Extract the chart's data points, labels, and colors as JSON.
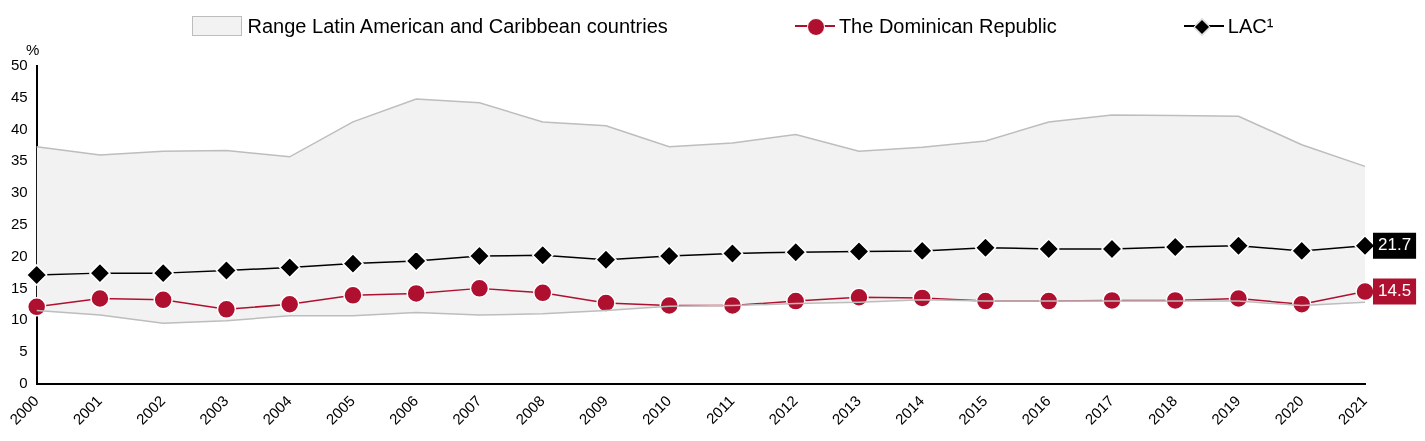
{
  "chart_data": {
    "type": "line",
    "ylabel": "%",
    "categories": [
      "2000",
      "2001",
      "2002",
      "2003",
      "2004",
      "2005",
      "2006",
      "2007",
      "2008",
      "2009",
      "2010",
      "2011",
      "2012",
      "2013",
      "2014",
      "2015",
      "2016",
      "2017",
      "2018",
      "2019",
      "2020",
      "2021"
    ],
    "ylim": [
      0,
      50
    ],
    "yticks": [
      0,
      5,
      10,
      15,
      20,
      25,
      30,
      35,
      40,
      45,
      50
    ],
    "grid": false,
    "legend": "top",
    "line_style": "solid",
    "series": [
      {
        "type": "line",
        "marker": "none",
        "color": "#bdbdbd",
        "values": [
          11.5,
          10.8,
          9.5,
          9.9,
          10.7,
          10.7,
          11.2,
          10.8,
          11.0,
          11.5,
          12.2,
          12.3,
          12.6,
          12.8,
          13.2,
          13.0,
          13.0,
          13.0,
          13.0,
          13.0,
          12.3,
          12.8
        ]
      },
      {
        "name": "Range Latin American and Caribbean countries",
        "type": "area",
        "color": "#f2f2f2",
        "values": [
          37.3,
          36.0,
          36.6,
          36.7,
          35.7,
          41.2,
          44.8,
          44.2,
          41.2,
          40.6,
          37.3,
          37.9,
          39.2,
          36.6,
          37.2,
          38.2,
          41.2,
          42.3,
          42.2,
          42.1,
          37.6,
          34.2
        ]
      },
      {
        "name": "The Dominican Republic",
        "type": "line",
        "marker": "circle",
        "color": "#b0102f",
        "values": [
          12.1,
          13.4,
          13.2,
          11.7,
          12.5,
          13.9,
          14.2,
          15.0,
          14.3,
          12.7,
          12.3,
          12.3,
          13.0,
          13.6,
          13.5,
          13.0,
          13.0,
          13.1,
          13.1,
          13.4,
          12.5,
          14.5
        ],
        "value_labels": [
          null,
          null,
          null,
          null,
          null,
          null,
          null,
          null,
          null,
          null,
          null,
          null,
          null,
          null,
          null,
          null,
          null,
          null,
          null,
          null,
          null,
          "14.5"
        ]
      },
      {
        "name": "LAC¹",
        "type": "line",
        "marker": "diamond",
        "color": "#000000",
        "values": [
          17.1,
          17.4,
          17.4,
          17.8,
          18.3,
          18.9,
          19.3,
          20.1,
          20.2,
          19.5,
          20.1,
          20.5,
          20.7,
          20.8,
          20.9,
          21.4,
          21.2,
          21.2,
          21.5,
          21.7,
          20.9,
          21.7
        ],
        "value_labels": [
          null,
          null,
          null,
          null,
          null,
          null,
          null,
          null,
          null,
          null,
          null,
          null,
          null,
          null,
          null,
          null,
          null,
          null,
          null,
          null,
          null,
          "21.7"
        ]
      }
    ]
  }
}
